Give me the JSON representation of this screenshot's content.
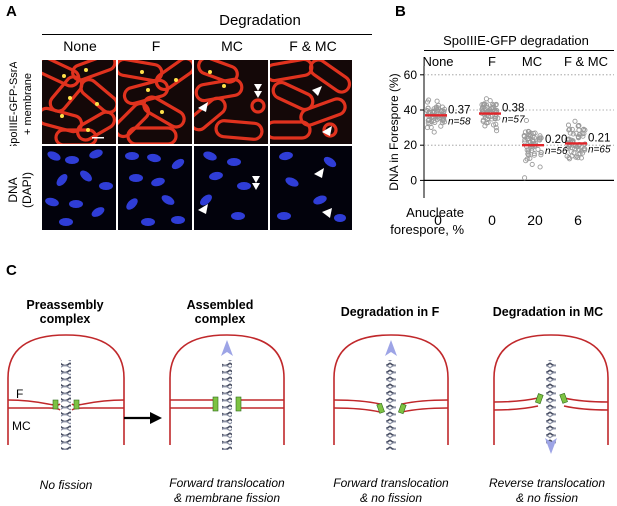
{
  "panelA": {
    "letter": "A",
    "title": "Degradation",
    "columns": [
      "None",
      "F",
      "MC",
      "F & MC"
    ],
    "row_labels": [
      [
        "SpoIIIE-GFP-SsrA*",
        "+ membrane"
      ],
      [
        "DNA",
        "(DAPI)"
      ]
    ]
  },
  "panelB": {
    "letter": "B",
    "title": "SpoIIIE-GFP degradation",
    "ylabel": "DNA in Forespore (%)",
    "anucleate_label": [
      "Anucleate",
      "forespore, %"
    ],
    "chart_data": {
      "type": "scatter",
      "categories": [
        "None",
        "F",
        "MC",
        "F & MC"
      ],
      "medians": [
        0.37,
        0.38,
        0.2,
        0.21
      ],
      "median_labels": [
        "0.37",
        "0.38",
        "0.20",
        "0.21"
      ],
      "n_labels": [
        "n=58",
        "n=57",
        "n=56",
        "n=65"
      ],
      "anucleate": [
        "0",
        "0",
        "20",
        "6"
      ],
      "yticks": [
        "60",
        "40",
        "20",
        "0"
      ],
      "ylim": [
        -10,
        65
      ],
      "grid": true,
      "point_color": "#9a9a9a",
      "median_color": "#e0252a"
    }
  },
  "panelC": {
    "letter": "C",
    "stages": [
      {
        "title": [
          "Preassembly",
          "complex"
        ],
        "caption": [
          "No fission"
        ]
      },
      {
        "title": [
          "Assembled",
          "complex"
        ],
        "caption": [
          "Forward translocation",
          "& membrane fission"
        ]
      },
      {
        "title": [
          "Degradation in F"
        ],
        "caption": [
          "Forward translocation",
          "& no fission"
        ]
      },
      {
        "title": [
          "Degradation in MC"
        ],
        "caption": [
          "Reverse translocation",
          "& no fission"
        ]
      }
    ],
    "labels": {
      "forespore": "F",
      "mother_cell": "MC"
    },
    "colors": {
      "membrane": "#c0282b",
      "complex": "#7dc242",
      "dna": "#4a5064",
      "arrow": "#9da4e6"
    }
  }
}
